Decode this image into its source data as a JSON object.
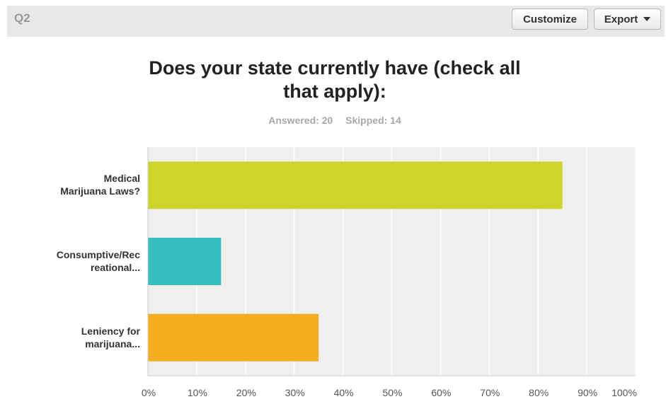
{
  "header": {
    "question_label": "Q2",
    "customize_label": "Customize",
    "export_label": "Export"
  },
  "chart_data": {
    "type": "bar",
    "orientation": "horizontal",
    "title_line1": "Does your state currently have (check all",
    "title_line2": "that apply):",
    "answered": "Answered: 20",
    "skipped": "Skipped: 14",
    "categories": [
      [
        "Medical",
        "Marijuana Laws?"
      ],
      [
        "Consumptive/Rec",
        "reational..."
      ],
      [
        "Leniency for",
        "marijuana..."
      ]
    ],
    "values": [
      85,
      15,
      35
    ],
    "colors": [
      "#cdd52a",
      "#35bfc0",
      "#f5ad1f"
    ],
    "xlim": [
      0,
      100
    ],
    "xticks": [
      "0%",
      "10%",
      "20%",
      "30%",
      "40%",
      "50%",
      "60%",
      "70%",
      "80%",
      "90%",
      "100%"
    ],
    "grid": true
  }
}
